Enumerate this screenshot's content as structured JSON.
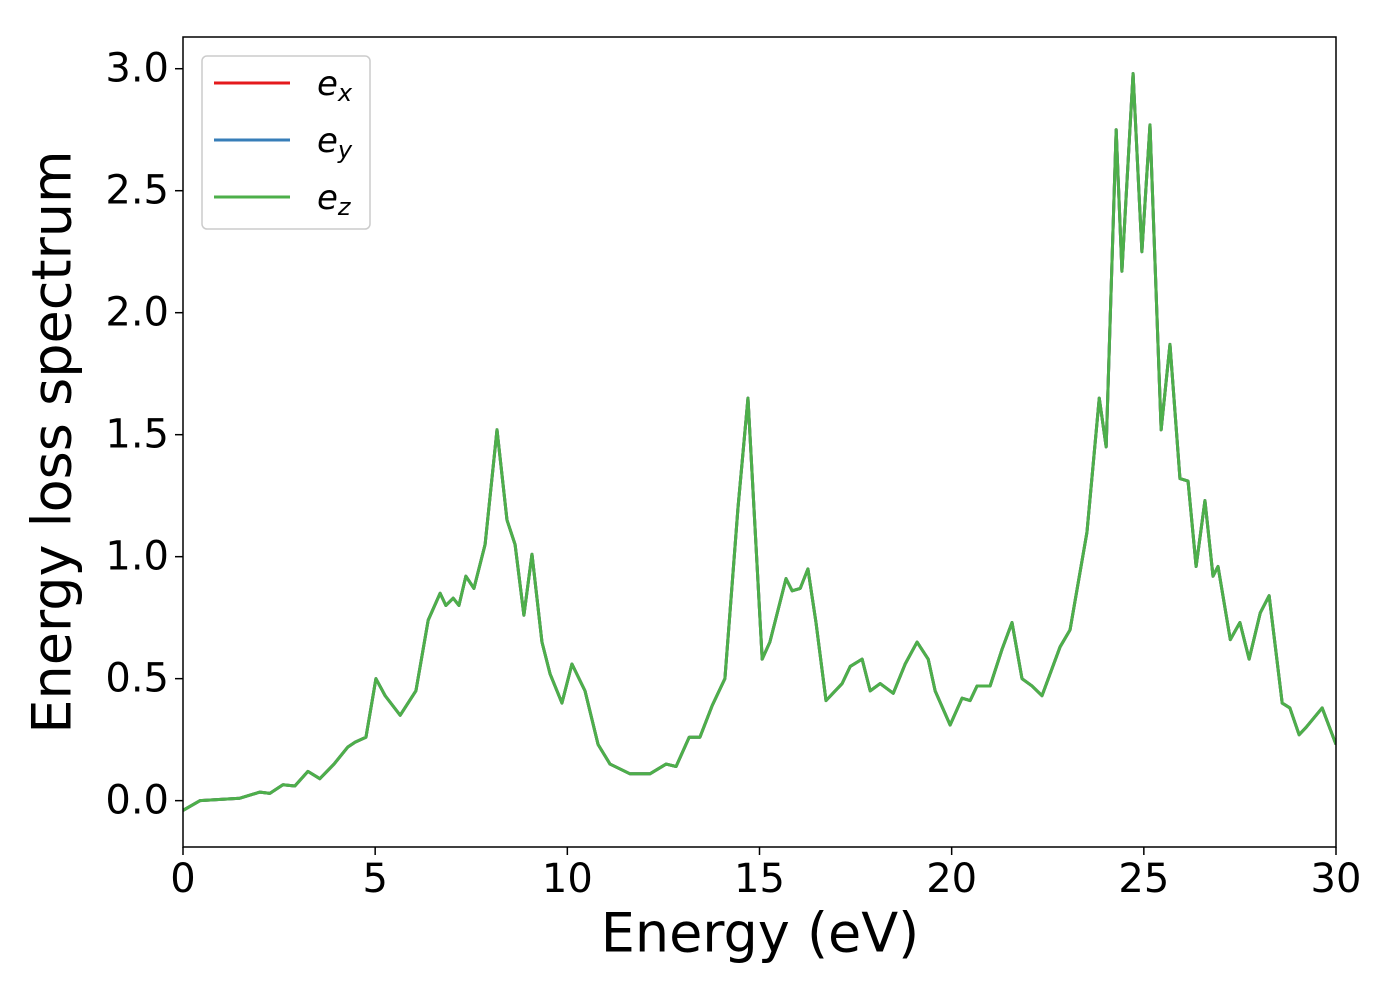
{
  "chart_data": {
    "type": "line",
    "xlabel": "Energy (eV)",
    "ylabel": "Energy loss spectrum",
    "xlim": [
      0,
      30
    ],
    "xticks": [
      0,
      5,
      10,
      15,
      20,
      25,
      30
    ],
    "ylim": [
      -0.19,
      3.13
    ],
    "yticks": [
      {
        "value": 0,
        "label": "0.0"
      },
      {
        "value": 0.5,
        "label": "0.5"
      },
      {
        "value": 1,
        "label": "1.0"
      },
      {
        "value": 1.5,
        "label": "1.5"
      },
      {
        "value": 2,
        "label": "2.0"
      },
      {
        "value": 2.5,
        "label": "2.5"
      },
      {
        "value": 3,
        "label": "3.0"
      }
    ],
    "legend": "upper left",
    "x": [
      0,
      0.44,
      1.48,
      2.0,
      2.26,
      2.6,
      2.91,
      3.25,
      3.56,
      3.93,
      4.29,
      4.48,
      4.76,
      5.02,
      5.26,
      5.65,
      6.06,
      6.38,
      6.69,
      6.84,
      7.03,
      7.18,
      7.36,
      7.57,
      7.86,
      8.17,
      8.43,
      8.64,
      8.87,
      9.08,
      9.34,
      9.55,
      9.86,
      10.12,
      10.46,
      10.8,
      11.11,
      11.63,
      12.15,
      12.57,
      12.83,
      13.17,
      13.45,
      13.77,
      14.1,
      14.44,
      14.7,
      15.07,
      15.27,
      15.69,
      15.85,
      16.06,
      16.26,
      16.47,
      16.73,
      17.15,
      17.36,
      17.67,
      17.88,
      18.14,
      18.48,
      18.79,
      19.1,
      19.39,
      19.57,
      19.96,
      20.27,
      20.48,
      20.66,
      21.0,
      21.31,
      21.57,
      21.83,
      22.09,
      22.35,
      22.82,
      23.08,
      23.52,
      23.84,
      24.02,
      24.28,
      24.43,
      24.72,
      24.95,
      25.16,
      25.45,
      25.68,
      25.94,
      26.15,
      26.36,
      26.59,
      26.8,
      26.93,
      27.25,
      27.5,
      27.74,
      28.03,
      28.26,
      28.6,
      28.8,
      29.04,
      29.22,
      29.64,
      30
    ],
    "series": [
      {
        "name": "e_x",
        "color": "#e41a1c",
        "values": [
          -0.04,
          0.0,
          0.01,
          0.035,
          0.03,
          0.065,
          0.06,
          0.12,
          0.09,
          0.15,
          0.22,
          0.24,
          0.26,
          0.5,
          0.43,
          0.35,
          0.45,
          0.74,
          0.85,
          0.8,
          0.83,
          0.8,
          0.92,
          0.87,
          1.05,
          1.52,
          1.15,
          1.05,
          0.76,
          1.01,
          0.65,
          0.52,
          0.4,
          0.56,
          0.45,
          0.23,
          0.15,
          0.11,
          0.11,
          0.15,
          0.14,
          0.26,
          0.26,
          0.39,
          0.5,
          1.2,
          1.65,
          0.58,
          0.65,
          0.91,
          0.86,
          0.87,
          0.95,
          0.73,
          0.41,
          0.48,
          0.55,
          0.58,
          0.45,
          0.48,
          0.44,
          0.56,
          0.65,
          0.58,
          0.45,
          0.31,
          0.42,
          0.41,
          0.47,
          0.47,
          0.62,
          0.73,
          0.5,
          0.47,
          0.43,
          0.63,
          0.7,
          1.1,
          1.65,
          1.45,
          2.75,
          2.17,
          2.98,
          2.25,
          2.77,
          1.52,
          1.87,
          1.32,
          1.31,
          0.96,
          1.23,
          0.92,
          0.96,
          0.66,
          0.73,
          0.58,
          0.77,
          0.84,
          0.4,
          0.38,
          0.27,
          0.3,
          0.38,
          0.23
        ]
      },
      {
        "name": "e_y",
        "color": "#377eb8",
        "values": [
          -0.04,
          0.0,
          0.01,
          0.035,
          0.03,
          0.065,
          0.06,
          0.12,
          0.09,
          0.15,
          0.22,
          0.24,
          0.26,
          0.5,
          0.43,
          0.35,
          0.45,
          0.74,
          0.85,
          0.8,
          0.83,
          0.8,
          0.92,
          0.87,
          1.05,
          1.52,
          1.15,
          1.05,
          0.76,
          1.01,
          0.65,
          0.52,
          0.4,
          0.56,
          0.45,
          0.23,
          0.15,
          0.11,
          0.11,
          0.15,
          0.14,
          0.26,
          0.26,
          0.39,
          0.5,
          1.2,
          1.65,
          0.58,
          0.65,
          0.91,
          0.86,
          0.87,
          0.95,
          0.73,
          0.41,
          0.48,
          0.55,
          0.58,
          0.45,
          0.48,
          0.44,
          0.56,
          0.65,
          0.58,
          0.45,
          0.31,
          0.42,
          0.41,
          0.47,
          0.47,
          0.62,
          0.73,
          0.5,
          0.47,
          0.43,
          0.63,
          0.7,
          1.1,
          1.65,
          1.45,
          2.75,
          2.17,
          2.98,
          2.25,
          2.77,
          1.52,
          1.87,
          1.32,
          1.31,
          0.96,
          1.23,
          0.92,
          0.96,
          0.66,
          0.73,
          0.58,
          0.77,
          0.84,
          0.4,
          0.38,
          0.27,
          0.3,
          0.38,
          0.23
        ]
      },
      {
        "name": "e_z",
        "color": "#4daf4a",
        "values": [
          -0.04,
          0.0,
          0.01,
          0.035,
          0.03,
          0.065,
          0.06,
          0.12,
          0.09,
          0.15,
          0.22,
          0.24,
          0.26,
          0.5,
          0.43,
          0.35,
          0.45,
          0.74,
          0.85,
          0.8,
          0.83,
          0.8,
          0.92,
          0.87,
          1.05,
          1.52,
          1.15,
          1.05,
          0.76,
          1.01,
          0.65,
          0.52,
          0.4,
          0.56,
          0.45,
          0.23,
          0.15,
          0.11,
          0.11,
          0.15,
          0.14,
          0.26,
          0.26,
          0.39,
          0.5,
          1.2,
          1.65,
          0.58,
          0.65,
          0.91,
          0.86,
          0.87,
          0.95,
          0.73,
          0.41,
          0.48,
          0.55,
          0.58,
          0.45,
          0.48,
          0.44,
          0.56,
          0.65,
          0.58,
          0.45,
          0.31,
          0.42,
          0.41,
          0.47,
          0.47,
          0.62,
          0.73,
          0.5,
          0.47,
          0.43,
          0.63,
          0.7,
          1.1,
          1.65,
          1.45,
          2.75,
          2.17,
          2.98,
          2.25,
          2.77,
          1.52,
          1.87,
          1.32,
          1.31,
          0.96,
          1.23,
          0.92,
          0.96,
          0.66,
          0.73,
          0.58,
          0.77,
          0.84,
          0.4,
          0.38,
          0.27,
          0.3,
          0.38,
          0.23
        ]
      }
    ]
  }
}
